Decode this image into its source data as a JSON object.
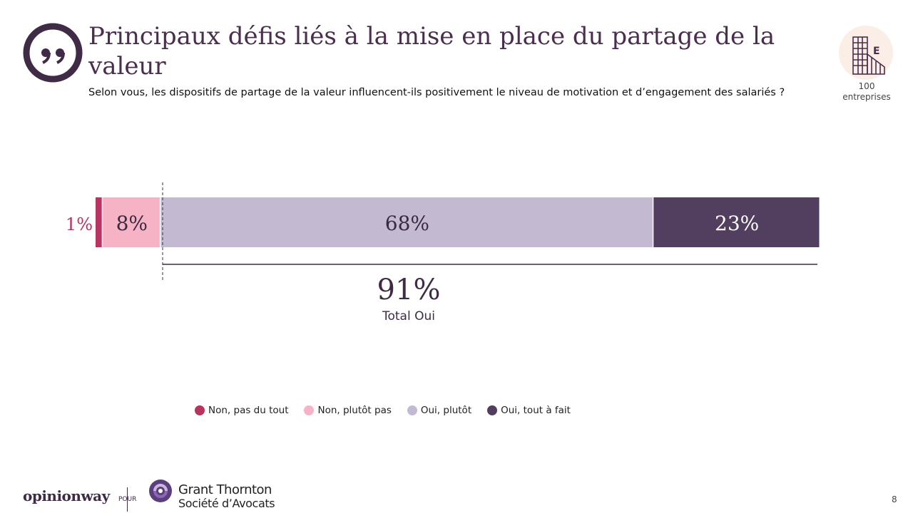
{
  "header": {
    "title": "Principaux défis liés à la mise en place du partage de la valeur",
    "subtitle": "Selon vous, les dispositifs de partage de la valeur influencent-ils positivement le niveau de motivation et d’engagement des salariés ?"
  },
  "sample": {
    "value": "100",
    "label": "entreprises"
  },
  "chart_data": {
    "type": "bar",
    "orientation": "horizontal-stacked",
    "categories": [
      ""
    ],
    "series": [
      {
        "name": "Non, pas du tout",
        "values": [
          1
        ],
        "label": "1%",
        "color": "#b83262"
      },
      {
        "name": "Non, plutôt pas",
        "values": [
          8
        ],
        "label": "8%",
        "color": "#f7b3c6"
      },
      {
        "name": "Oui, plutôt",
        "values": [
          68
        ],
        "label": "68%",
        "color": "#c3b9d0"
      },
      {
        "name": "Oui, tout à fait",
        "values": [
          23
        ],
        "label": "23%",
        "color": "#523f60"
      }
    ],
    "total": {
      "value": "91%",
      "label": "Total Oui"
    },
    "legend_position": "bottom"
  },
  "footer": {
    "brand": "opinionway",
    "pour": "POUR",
    "partner_name": "Grant Thornton",
    "partner_sub": "Société d’Avocats",
    "page_number": "8"
  },
  "colors": {
    "title": "#4b2d4f",
    "accent": "#4b2d4f"
  }
}
